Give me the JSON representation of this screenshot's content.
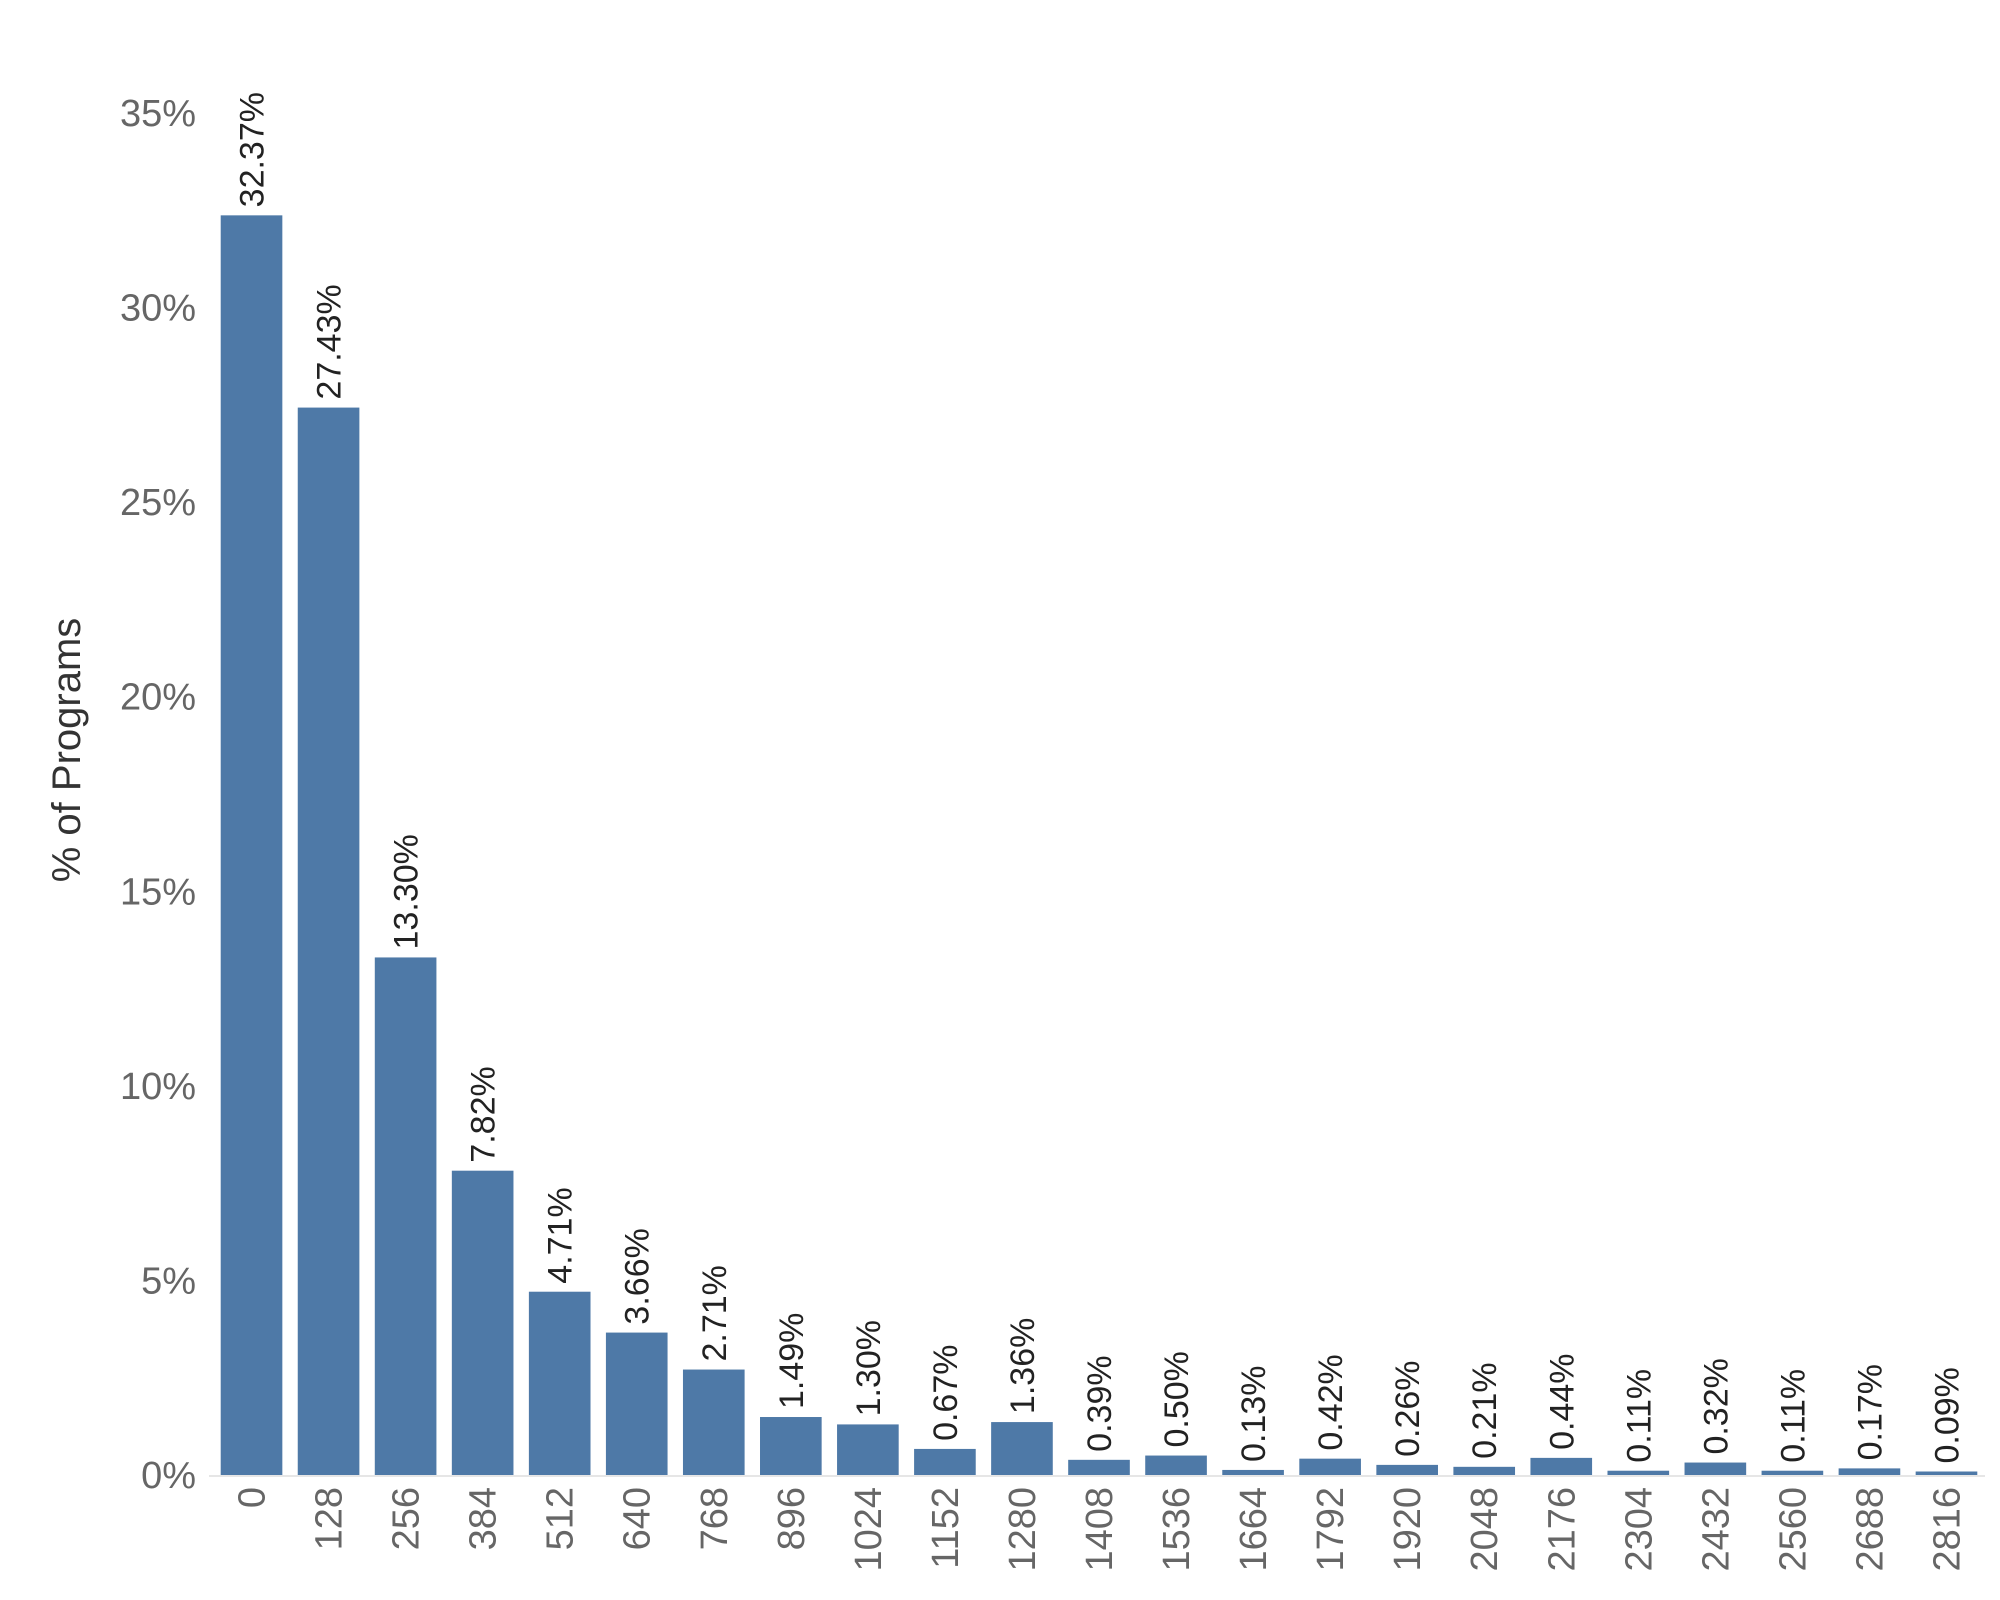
{
  "chart_data": {
    "type": "bar",
    "ylabel": "% of Programs",
    "xlabel": "",
    "ylim": [
      0,
      37
    ],
    "yticks": [
      "0%",
      "5%",
      "10%",
      "15%",
      "20%",
      "25%",
      "30%",
      "35%"
    ],
    "ytick_values": [
      0,
      5,
      10,
      15,
      20,
      25,
      30,
      35
    ],
    "grid": false,
    "categories": [
      "0",
      "128",
      "256",
      "384",
      "512",
      "640",
      "768",
      "896",
      "1024",
      "1152",
      "1280",
      "1408",
      "1536",
      "1664",
      "1792",
      "1920",
      "2048",
      "2176",
      "2304",
      "2432",
      "2560",
      "2688",
      "2816"
    ],
    "values": [
      32.37,
      27.43,
      13.3,
      7.82,
      4.71,
      3.66,
      2.71,
      1.49,
      1.3,
      0.67,
      1.36,
      0.39,
      0.5,
      0.13,
      0.42,
      0.26,
      0.21,
      0.44,
      0.11,
      0.32,
      0.11,
      0.17,
      0.09
    ],
    "data_labels": [
      "32.37%",
      "27.43%",
      "13.30%",
      "7.82%",
      "4.71%",
      "3.66%",
      "2.71%",
      "1.49%",
      "1.30%",
      "0.67%",
      "1.36%",
      "0.39%",
      "0.50%",
      "0.13%",
      "0.42%",
      "0.26%",
      "0.21%",
      "0.44%",
      "0.11%",
      "0.32%",
      "0.11%",
      "0.17%",
      "0.09%"
    ],
    "bar_color": "#4e79a7"
  }
}
